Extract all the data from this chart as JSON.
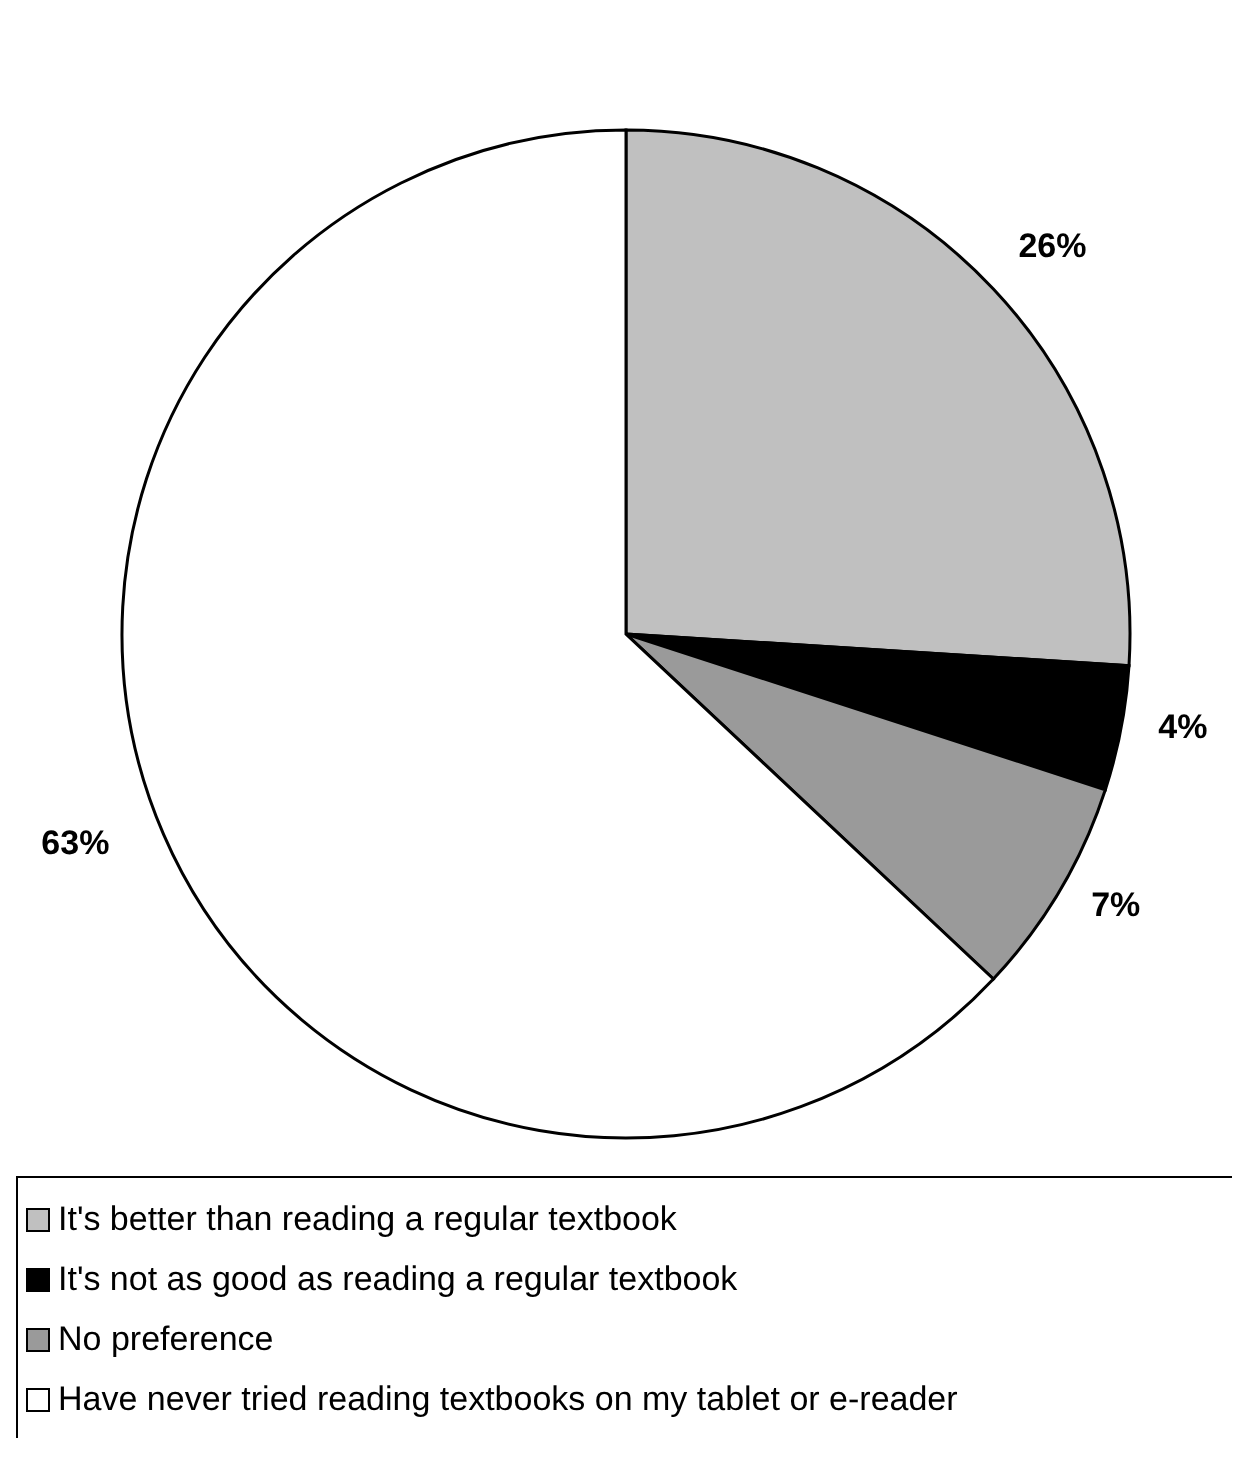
{
  "chart_data": {
    "type": "pie",
    "categories": [
      "It's better than reading a regular textbook",
      "It's not as good as reading a regular textbook",
      "No preference",
      "Have never tried reading textbooks on my tablet or e-reader"
    ],
    "values": [
      26,
      4,
      7,
      63
    ],
    "colors": [
      "#c0c0c0",
      "#000000",
      "#9a9a9a",
      "#ffffff"
    ],
    "value_labels": [
      "26%",
      "4%",
      "7%",
      "63%"
    ],
    "legend": "bottom"
  }
}
